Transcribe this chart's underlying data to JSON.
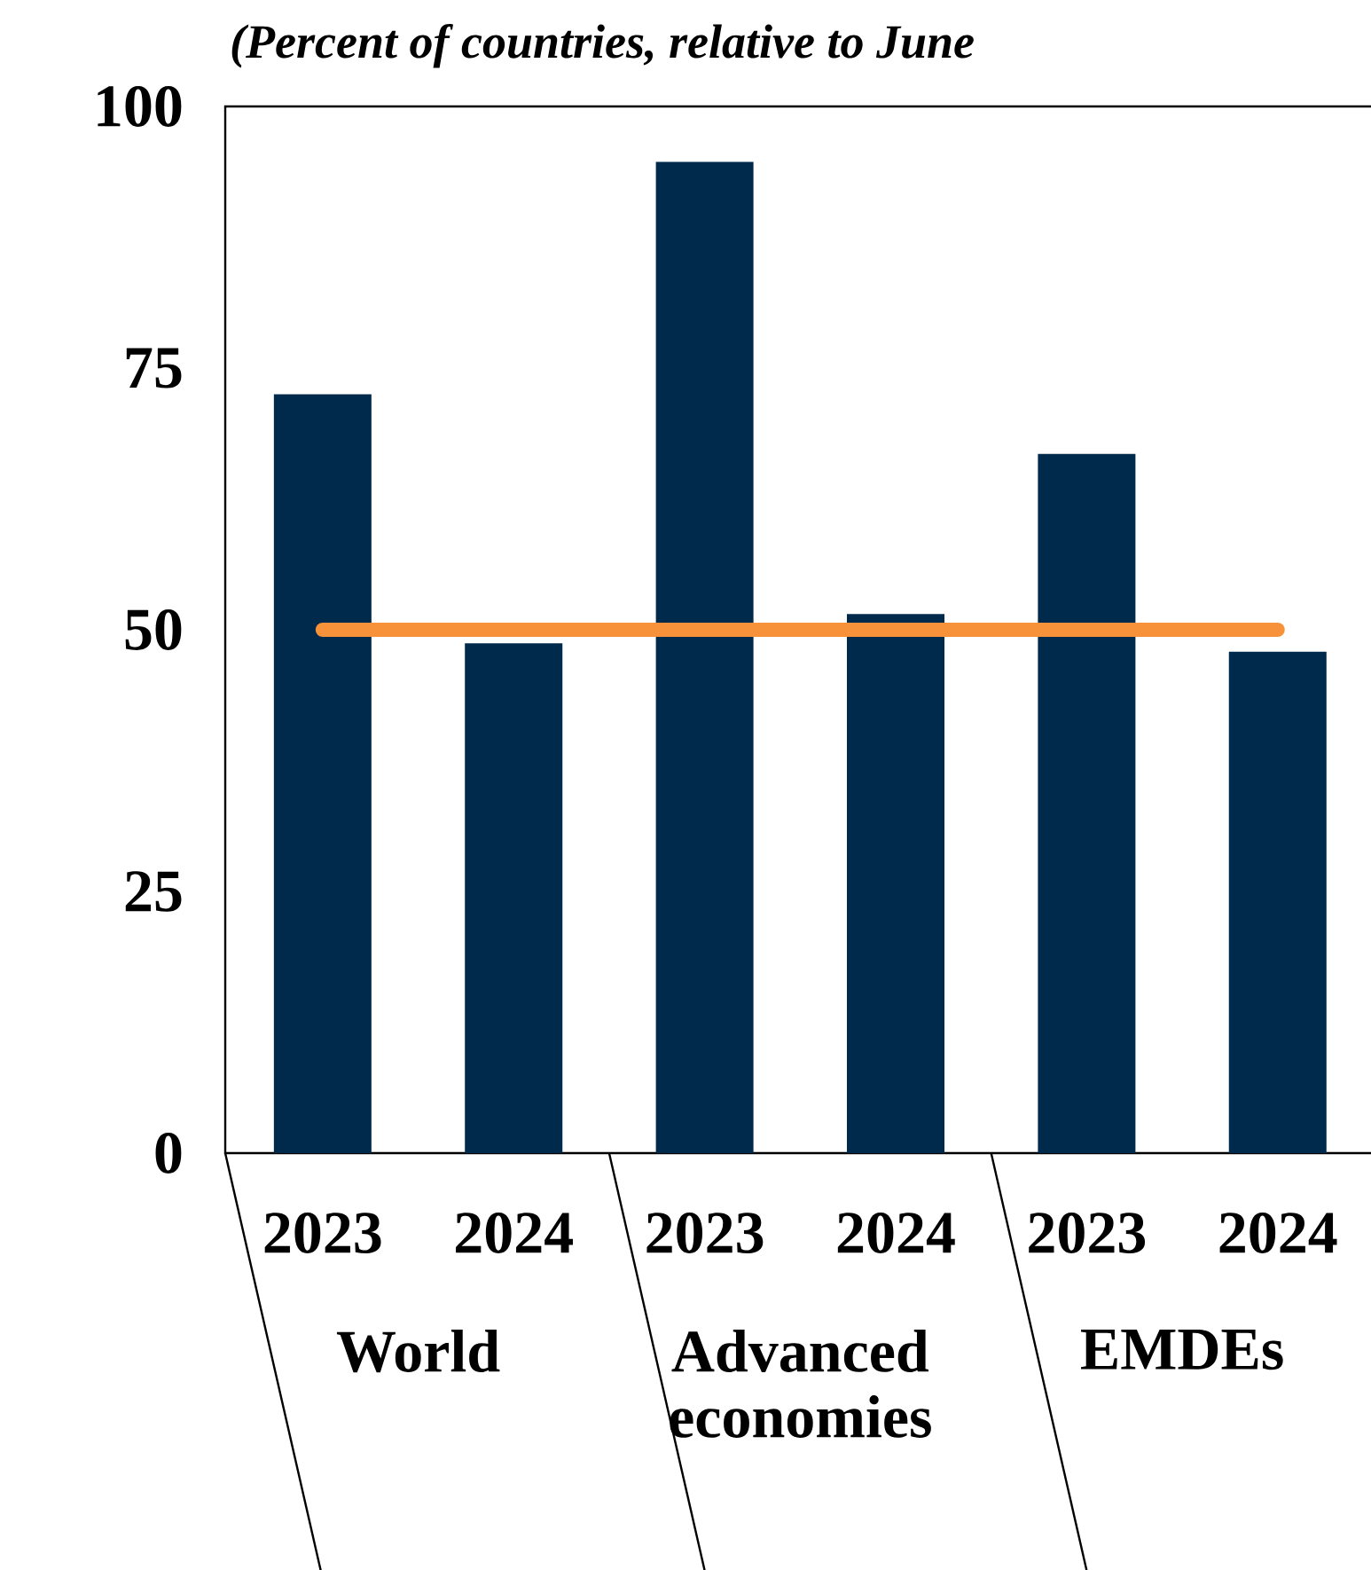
{
  "chart_data": {
    "type": "bar",
    "subtitle": "(Percent of countries, relative to June",
    "categories": [
      "2023",
      "2024",
      "2023",
      "2024",
      "2023",
      "2024"
    ],
    "values": [
      72.5,
      48.7,
      94.7,
      51.5,
      66.8,
      47.9
    ],
    "color": "#002a4c",
    "ylim": [
      0,
      100
    ],
    "yticks": [
      0,
      25,
      50,
      75,
      100
    ],
    "ref_lines": [
      {
        "axis": "y",
        "value": 50,
        "color": "#f7923a"
      }
    ],
    "annotations": [
      "World",
      "Advanced economies",
      "EMDEs"
    ]
  }
}
